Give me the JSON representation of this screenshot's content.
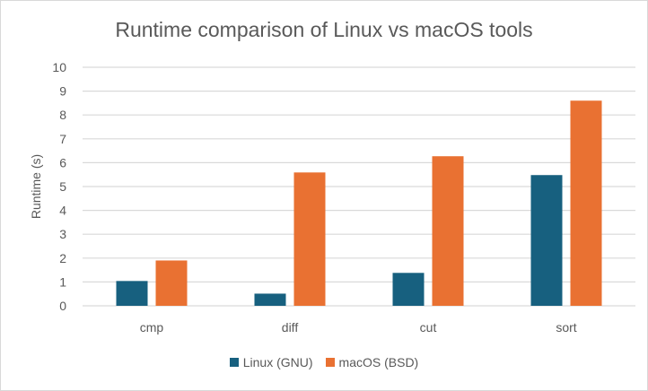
{
  "chart_data": {
    "type": "bar",
    "title": "Runtime comparison of Linux vs macOS tools",
    "xlabel": "",
    "ylabel": "Runtime (s)",
    "ylim": [
      0,
      10
    ],
    "yticks": [
      "0",
      "1",
      "2",
      "3",
      "4",
      "5",
      "6",
      "7",
      "8",
      "9",
      "10"
    ],
    "grid": true,
    "legend_position": "bottom",
    "categories": [
      "cmp",
      "diff",
      "cut",
      "sort"
    ],
    "series": [
      {
        "name": "Linux (GNU)",
        "color": "#17607F",
        "values": [
          1.04,
          0.51,
          1.38,
          5.48
        ]
      },
      {
        "name": "macOS (BSD)",
        "color": "#E97132",
        "values": [
          1.9,
          5.59,
          6.27,
          8.6
        ]
      }
    ]
  }
}
